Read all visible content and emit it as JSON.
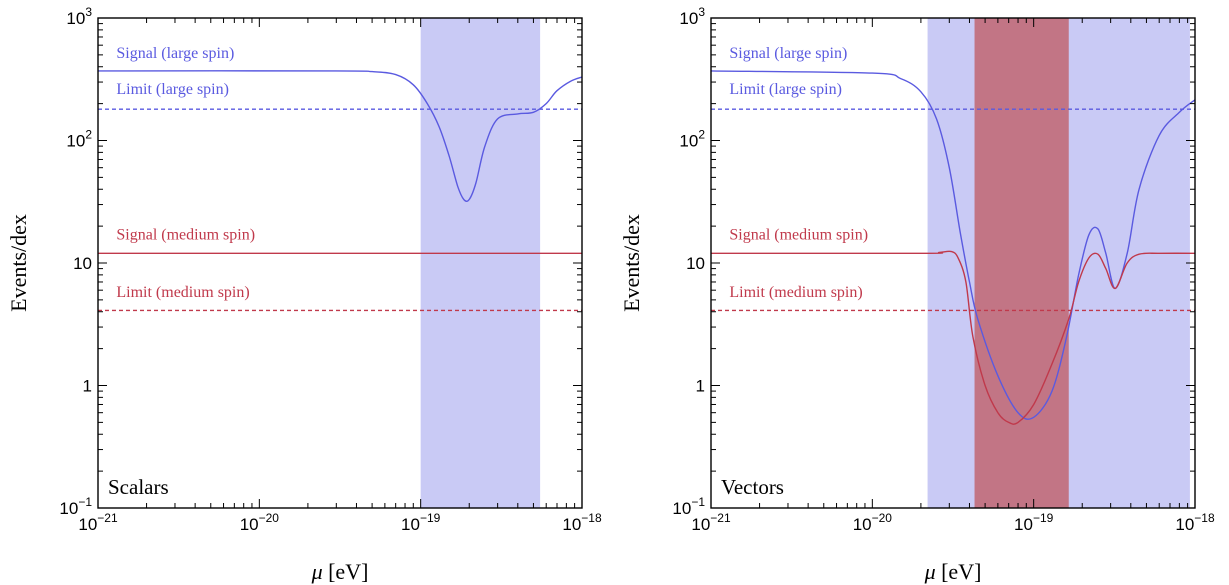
{
  "chart_data": [
    {
      "type": "line",
      "panel_label": "Scalars",
      "xlabel_symbol": "μ",
      "xlabel_unit": "[eV]",
      "ylabel": "Events/dex",
      "x_scale": "log",
      "y_scale": "log",
      "xlim": [
        1e-21,
        1e-18
      ],
      "ylim": [
        0.1,
        1000
      ],
      "x_ticks": [
        {
          "value": 1e-21,
          "base": "10",
          "exp": "−21"
        },
        {
          "value": 1e-20,
          "base": "10",
          "exp": "−20"
        },
        {
          "value": 1e-19,
          "base": "10",
          "exp": "−19"
        },
        {
          "value": 1e-18,
          "base": "10",
          "exp": "−18"
        }
      ],
      "y_ticks": [
        {
          "value": 0.1,
          "base": "10",
          "exp": "−1"
        },
        {
          "value": 1,
          "base": "1",
          "exp": ""
        },
        {
          "value": 10,
          "base": "10",
          "exp": ""
        },
        {
          "value": 100,
          "base": "10",
          "exp": "2"
        },
        {
          "value": 1000,
          "base": "10",
          "exp": "3"
        }
      ],
      "shaded_regions": [
        {
          "x": [
            1e-19,
            5.5e-19
          ],
          "color": "#c9caf5"
        }
      ],
      "series": [
        {
          "name": "Signal (large spin)",
          "color": "#5a5ae0",
          "dash": false,
          "label_x": 1.3e-21,
          "label_y": 470,
          "x": [
            1e-21,
            3e-20,
            5e-20,
            7e-20,
            9e-20,
            1.1e-19,
            1.3e-19,
            1.5e-19,
            1.7e-19,
            1.85e-19,
            2e-19,
            2.2e-19,
            2.5e-19,
            3e-19,
            4e-19,
            5e-19,
            6e-19,
            7e-19,
            8.5e-19,
            1e-18
          ],
          "y": [
            370,
            370,
            365,
            345,
            285,
            200,
            130,
            75,
            42,
            33,
            33,
            45,
            90,
            150,
            165,
            170,
            200,
            255,
            305,
            330
          ]
        },
        {
          "name": "Limit  (large spin)",
          "color": "#5a5ae0",
          "dash": true,
          "label_x": 1.3e-21,
          "label_y": 240,
          "x": [
            1e-21,
            1e-18
          ],
          "y": [
            180,
            180
          ]
        },
        {
          "name": "Signal (medium spin)",
          "color": "#c0394b",
          "dash": false,
          "label_x": 1.3e-21,
          "label_y": 15.5,
          "x": [
            1e-21,
            1e-18
          ],
          "y": [
            12,
            12
          ]
        },
        {
          "name": "Limit  (medium spin)",
          "color": "#c0394b",
          "dash": true,
          "label_x": 1.3e-21,
          "label_y": 5.3,
          "x": [
            1e-21,
            1e-18
          ],
          "y": [
            4.1,
            4.1
          ]
        }
      ]
    },
    {
      "type": "line",
      "panel_label": "Vectors",
      "xlabel_symbol": "μ",
      "xlabel_unit": "[eV]",
      "ylabel": "Events/dex",
      "x_scale": "log",
      "y_scale": "log",
      "xlim": [
        1e-21,
        1e-18
      ],
      "ylim": [
        0.1,
        1000
      ],
      "x_ticks": [
        {
          "value": 1e-21,
          "base": "10",
          "exp": "−21"
        },
        {
          "value": 1e-20,
          "base": "10",
          "exp": "−20"
        },
        {
          "value": 1e-19,
          "base": "10",
          "exp": "−19"
        },
        {
          "value": 1e-18,
          "base": "10",
          "exp": "−18"
        }
      ],
      "y_ticks": [
        {
          "value": 0.1,
          "base": "10",
          "exp": "−1"
        },
        {
          "value": 1,
          "base": "1",
          "exp": ""
        },
        {
          "value": 10,
          "base": "10",
          "exp": ""
        },
        {
          "value": 100,
          "base": "10",
          "exp": "2"
        },
        {
          "value": 1000,
          "base": "10",
          "exp": "3"
        }
      ],
      "shaded_regions": [
        {
          "x": [
            2.2e-20,
            9.3e-19
          ],
          "color": "#c9caf5"
        },
        {
          "x": [
            4.3e-20,
            1.65e-19
          ],
          "color": "#c27585"
        }
      ],
      "series": [
        {
          "name": "Signal (large spin)",
          "color": "#5a5ae0",
          "dash": false,
          "label_x": 1.3e-21,
          "label_y": 470,
          "x": [
            1e-21,
            1e-20,
            1.5e-20,
            2e-20,
            2.5e-20,
            3e-20,
            3.5e-20,
            4e-20,
            4.5e-20,
            6e-20,
            8e-20,
            1e-19,
            1.3e-19,
            1.6e-19,
            1.9e-19,
            2.2e-19,
            2.5e-19,
            2.8e-19,
            3.2e-19,
            3.8e-19,
            4.5e-19,
            6e-19,
            8e-19,
            1e-18
          ],
          "y": [
            370,
            355,
            320,
            250,
            150,
            60,
            18,
            7,
            3.5,
            1.2,
            0.6,
            0.55,
            0.9,
            2.5,
            8,
            17,
            19,
            12,
            6.2,
            12,
            40,
            110,
            170,
            215
          ]
        },
        {
          "name": "Limit  (large spin)",
          "color": "#5a5ae0",
          "dash": true,
          "label_x": 1.3e-21,
          "label_y": 240,
          "x": [
            1e-21,
            1e-18
          ],
          "y": [
            180,
            180
          ]
        },
        {
          "name": "Signal (medium spin)",
          "color": "#c0394b",
          "dash": false,
          "label_x": 1.3e-21,
          "label_y": 15.5,
          "x": [
            1e-21,
            2e-20,
            2.6e-20,
            3.1e-20,
            3.4e-20,
            3.8e-20,
            4.2e-20,
            5e-20,
            6e-20,
            7e-20,
            8e-20,
            1e-19,
            1.3e-19,
            1.65e-19,
            1.9e-19,
            2.2e-19,
            2.5e-19,
            2.8e-19,
            3.2e-19,
            3.8e-19,
            4.5e-19,
            6e-19,
            1e-18
          ],
          "y": [
            12,
            12,
            12.2,
            12.4,
            11,
            7,
            2.5,
            1,
            0.6,
            0.5,
            0.5,
            0.7,
            1.5,
            3.5,
            7,
            11,
            11.8,
            9,
            6.2,
            10,
            11.8,
            12,
            12
          ]
        },
        {
          "name": "Limit  (medium spin)",
          "color": "#c0394b",
          "dash": true,
          "label_x": 1.3e-21,
          "label_y": 5.3,
          "x": [
            1e-21,
            1e-18
          ],
          "y": [
            4.1,
            4.1
          ]
        }
      ]
    }
  ]
}
